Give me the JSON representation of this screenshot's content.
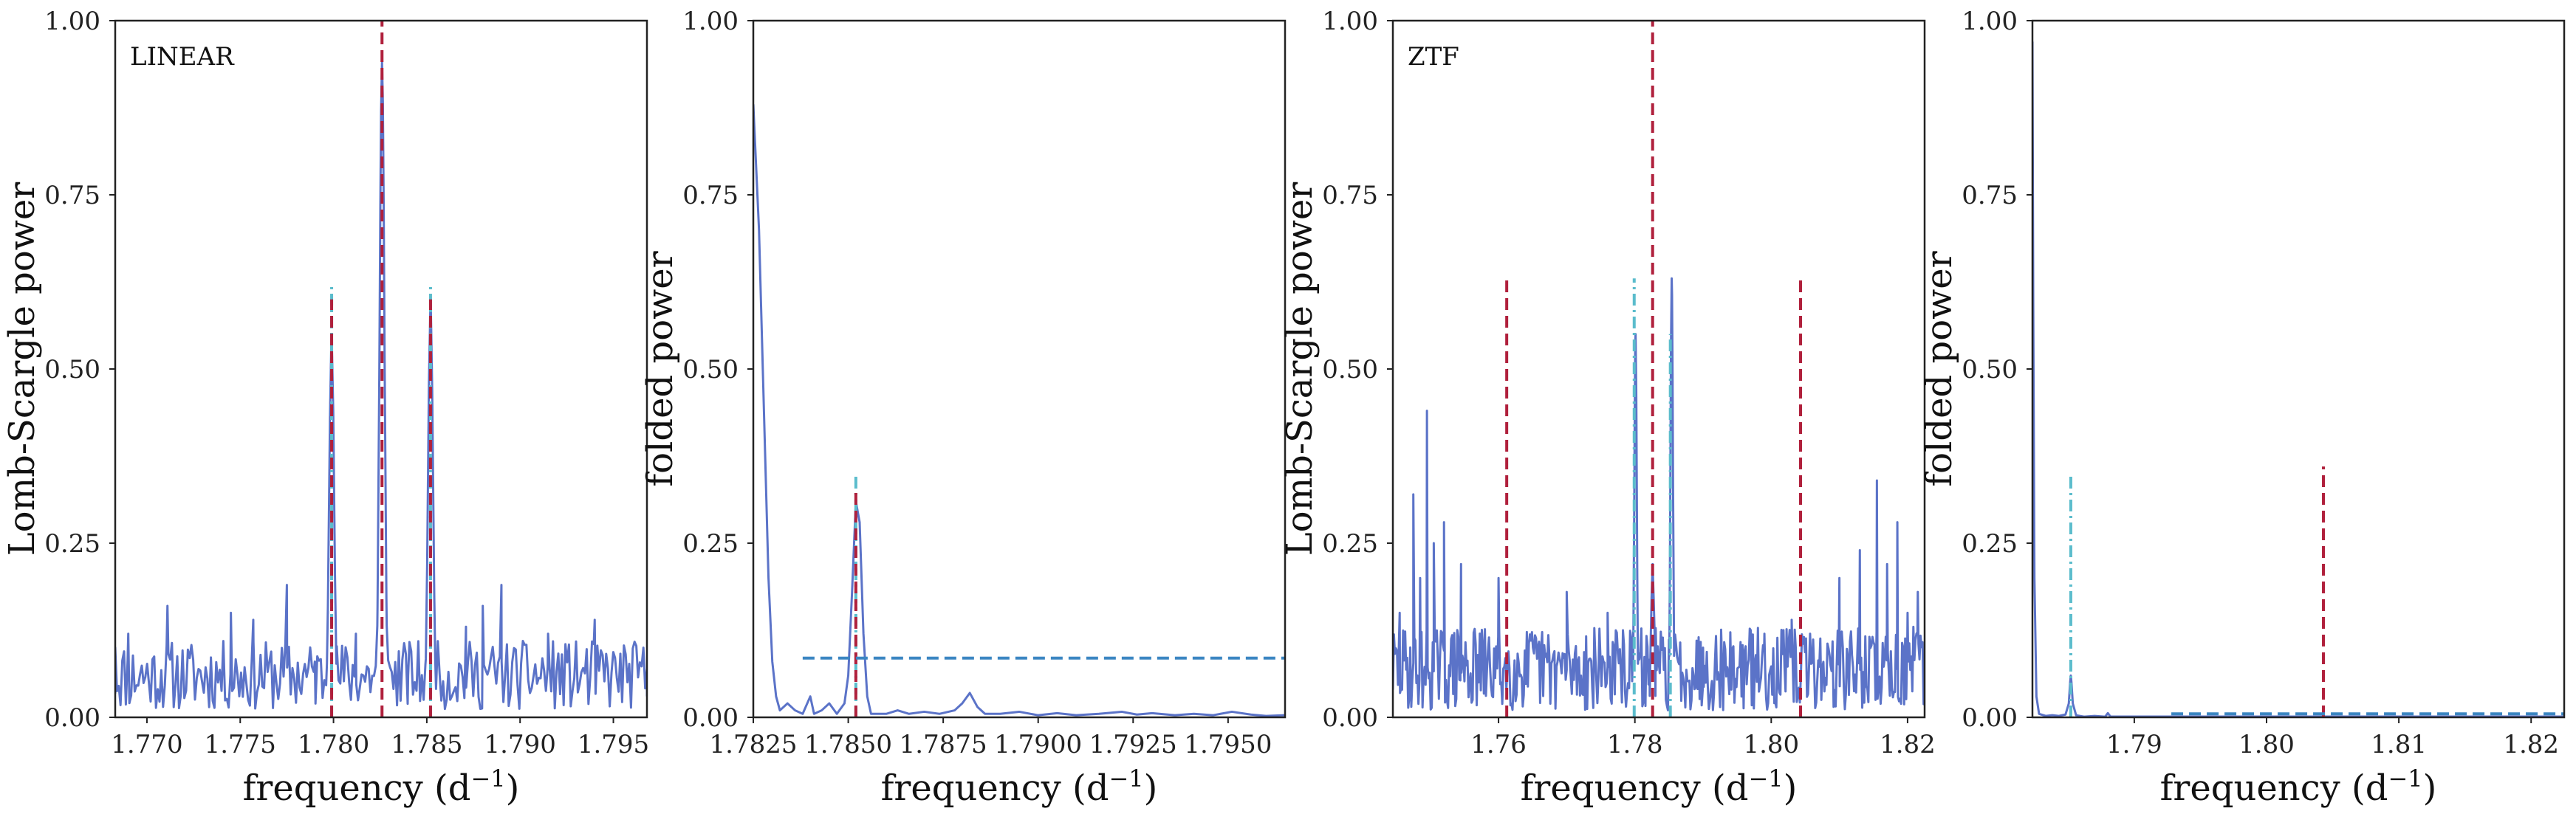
{
  "chart_data": [
    {
      "type": "line",
      "annotation": "LINEAR",
      "xlabel": "frequency (d",
      "xlabel_sup": "−1",
      "xlabel_tail": ")",
      "ylabel": "Lomb-Scargle power",
      "xlim": [
        1.7683,
        1.7968
      ],
      "ylim": [
        0,
        1
      ],
      "xticks": [
        1.77,
        1.775,
        1.78,
        1.785,
        1.79,
        1.795
      ],
      "xtick_labels": [
        "1.770",
        "1.775",
        "1.780",
        "1.785",
        "1.790",
        "1.795"
      ],
      "yticks": [
        0,
        0.25,
        0.5,
        0.75,
        1.0
      ],
      "ytick_labels": [
        "0.00",
        "0.25",
        "0.50",
        "0.75",
        "1.00"
      ],
      "grid": false,
      "series": [
        {
          "style": "solid",
          "color": "#5b73c8",
          "kind": "noisy",
          "baseline": 0.06,
          "noise": 0.05,
          "n": 300,
          "seed": 11,
          "extra_points": [
            [
              1.7683,
              0.1
            ],
            [
              1.769,
              0.12
            ],
            [
              1.7711,
              0.16
            ],
            [
              1.7745,
              0.15
            ],
            [
              1.7757,
              0.14
            ],
            [
              1.7775,
              0.19
            ],
            [
              1.779,
              0.08
            ],
            [
              1.7812,
              0.12
            ],
            [
              1.784,
              0.06
            ],
            [
              1.7871,
              0.13
            ],
            [
              1.788,
              0.16
            ],
            [
              1.789,
              0.19
            ],
            [
              1.7915,
              0.12
            ],
            [
              1.794,
              0.14
            ],
            [
              1.7968,
              0.03
            ]
          ],
          "peaks": [
            {
              "x": 1.7799,
              "y": 0.55,
              "w": 0.00018
            },
            {
              "x": 1.7826,
              "y": 0.94,
              "w": 0.00018
            },
            {
              "x": 1.7852,
              "y": 0.6,
              "w": 0.00018
            }
          ]
        }
      ],
      "vlines": [
        {
          "x": 1.7826,
          "y0": 0,
          "y1": 1.0,
          "style": "dashed",
          "color": "#b0203c"
        },
        {
          "x": 1.7799,
          "y0": 0,
          "y1": 0.62,
          "style": "dashdot",
          "color": "#5bbccc"
        },
        {
          "x": 1.7852,
          "y0": 0,
          "y1": 0.62,
          "style": "dashdot",
          "color": "#5bbccc"
        },
        {
          "x": 1.7799,
          "y0": 0,
          "y1": 0.6,
          "style": "dashed",
          "color": "#b0203c"
        },
        {
          "x": 1.7852,
          "y0": 0,
          "y1": 0.6,
          "style": "dashed",
          "color": "#b0203c"
        }
      ],
      "hlines": []
    },
    {
      "type": "line",
      "annotation": "",
      "xlabel": "frequency (d",
      "xlabel_sup": "−1",
      "xlabel_tail": ")",
      "ylabel": "folded power",
      "xlim": [
        1.7825,
        1.7965
      ],
      "ylim": [
        0,
        1
      ],
      "xticks": [
        1.7825,
        1.785,
        1.7875,
        1.79,
        1.7925,
        1.795
      ],
      "xtick_labels": [
        "1.7825",
        "1.7850",
        "1.7875",
        "1.7900",
        "1.7925",
        "1.7950"
      ],
      "yticks": [
        0,
        0.25,
        0.5,
        0.75,
        1.0
      ],
      "ytick_labels": [
        "0.00",
        "0.25",
        "0.50",
        "0.75",
        "1.00"
      ],
      "grid": false,
      "series": [
        {
          "style": "solid",
          "color": "#5b73c8",
          "kind": "points",
          "points": [
            [
              1.7825,
              0.88
            ],
            [
              1.78265,
              0.7
            ],
            [
              1.7828,
              0.4
            ],
            [
              1.7829,
              0.2
            ],
            [
              1.783,
              0.08
            ],
            [
              1.7831,
              0.03
            ],
            [
              1.7832,
              0.01
            ],
            [
              1.7834,
              0.02
            ],
            [
              1.7836,
              0.01
            ],
            [
              1.7838,
              0.005
            ],
            [
              1.784,
              0.03
            ],
            [
              1.7841,
              0.005
            ],
            [
              1.7843,
              0.01
            ],
            [
              1.7845,
              0.02
            ],
            [
              1.7847,
              0.005
            ],
            [
              1.7849,
              0.02
            ],
            [
              1.785,
              0.06
            ],
            [
              1.7851,
              0.18
            ],
            [
              1.7852,
              0.31
            ],
            [
              1.7853,
              0.28
            ],
            [
              1.7854,
              0.12
            ],
            [
              1.7855,
              0.03
            ],
            [
              1.7856,
              0.005
            ],
            [
              1.786,
              0.005
            ],
            [
              1.7863,
              0.01
            ],
            [
              1.7866,
              0.005
            ],
            [
              1.787,
              0.008
            ],
            [
              1.7874,
              0.005
            ],
            [
              1.7878,
              0.01
            ],
            [
              1.788,
              0.02
            ],
            [
              1.7882,
              0.035
            ],
            [
              1.7884,
              0.015
            ],
            [
              1.7886,
              0.005
            ],
            [
              1.789,
              0.005
            ],
            [
              1.7895,
              0.008
            ],
            [
              1.79,
              0.003
            ],
            [
              1.7905,
              0.006
            ],
            [
              1.791,
              0.003
            ],
            [
              1.7916,
              0.005
            ],
            [
              1.7922,
              0.008
            ],
            [
              1.7926,
              0.004
            ],
            [
              1.793,
              0.006
            ],
            [
              1.7936,
              0.003
            ],
            [
              1.7941,
              0.005
            ],
            [
              1.7946,
              0.003
            ],
            [
              1.7951,
              0.008
            ],
            [
              1.7956,
              0.004
            ],
            [
              1.796,
              0.002
            ],
            [
              1.7965,
              0.003
            ]
          ]
        }
      ],
      "vlines": [
        {
          "x": 1.7852,
          "y0": 0,
          "y1": 0.35,
          "style": "dashdot",
          "color": "#5bbccc"
        },
        {
          "x": 1.7852,
          "y0": 0,
          "y1": 0.33,
          "style": "dashed",
          "color": "#b0203c"
        }
      ],
      "hlines": [
        {
          "y": 0.085,
          "x0": 1.7838,
          "x1": 1.7965,
          "style": "dashed",
          "color": "#3b86c2"
        }
      ]
    },
    {
      "type": "line",
      "annotation": "ZTF",
      "xlabel": "frequency (d",
      "xlabel_sup": "−1",
      "xlabel_tail": ")",
      "ylabel": "Lomb-Scargle power",
      "xlim": [
        1.7445,
        1.8225
      ],
      "ylim": [
        0,
        1
      ],
      "xticks": [
        1.76,
        1.78,
        1.8,
        1.82
      ],
      "xtick_labels": [
        "1.76",
        "1.78",
        "1.80",
        "1.82"
      ],
      "yticks": [
        0,
        0.25,
        0.5,
        0.75,
        1.0
      ],
      "ytick_labels": [
        "0.00",
        "0.25",
        "0.50",
        "0.75",
        "1.00"
      ],
      "grid": false,
      "series": [
        {
          "style": "solid",
          "color": "#5b73c8",
          "kind": "noisy",
          "baseline": 0.07,
          "noise": 0.06,
          "n": 520,
          "seed": 29,
          "extra_points": [
            [
              1.7455,
              0.15
            ],
            [
              1.7475,
              0.32
            ],
            [
              1.7485,
              0.2
            ],
            [
              1.7495,
              0.44
            ],
            [
              1.7505,
              0.25
            ],
            [
              1.752,
              0.28
            ],
            [
              1.7545,
              0.22
            ],
            [
              1.76,
              0.2
            ],
            [
              1.77,
              0.18
            ],
            [
              1.776,
              0.15
            ],
            [
              1.79,
              0.1
            ],
            [
              1.799,
              0.12
            ],
            [
              1.803,
              0.14
            ],
            [
              1.81,
              0.2
            ],
            [
              1.813,
              0.24
            ],
            [
              1.8155,
              0.34
            ],
            [
              1.817,
              0.22
            ],
            [
              1.8185,
              0.28
            ],
            [
              1.82,
              0.15
            ],
            [
              1.8215,
              0.18
            ]
          ],
          "peaks": [
            {
              "x": 1.7801,
              "y": 0.55,
              "w": 0.00025
            },
            {
              "x": 1.7854,
              "y": 0.63,
              "w": 0.00025
            },
            {
              "x": 1.7826,
              "y": 0.22,
              "w": 0.0003
            }
          ]
        }
      ],
      "vlines": [
        {
          "x": 1.7826,
          "y0": 0,
          "y1": 1.0,
          "style": "dashed",
          "color": "#b0203c"
        },
        {
          "x": 1.7612,
          "y0": 0,
          "y1": 0.63,
          "style": "dashed",
          "color": "#b0203c"
        },
        {
          "x": 1.8043,
          "y0": 0,
          "y1": 0.63,
          "style": "dashed",
          "color": "#b0203c"
        },
        {
          "x": 1.7799,
          "y0": 0,
          "y1": 0.63,
          "style": "dashdot",
          "color": "#5bbccc"
        },
        {
          "x": 1.7852,
          "y0": 0,
          "y1": 0.55,
          "style": "dashdot",
          "color": "#5bbccc"
        }
      ],
      "hlines": []
    },
    {
      "type": "line",
      "annotation": "",
      "xlabel": "frequency (d",
      "xlabel_sup": "−1",
      "xlabel_tail": ")",
      "ylabel": "folded power",
      "xlim": [
        1.7823,
        1.8225
      ],
      "ylim": [
        0,
        1
      ],
      "xticks": [
        1.79,
        1.8,
        1.81,
        1.82
      ],
      "xtick_labels": [
        "1.79",
        "1.80",
        "1.81",
        "1.82"
      ],
      "yticks": [
        0,
        0.25,
        0.5,
        0.75,
        1.0
      ],
      "ytick_labels": [
        "0.00",
        "0.25",
        "0.50",
        "0.75",
        "1.00"
      ],
      "grid": false,
      "series": [
        {
          "style": "solid",
          "color": "#5b73c8",
          "kind": "points",
          "points": [
            [
              1.7823,
              0.97
            ],
            [
              1.78236,
              0.6
            ],
            [
              1.78245,
              0.2
            ],
            [
              1.7826,
              0.03
            ],
            [
              1.7828,
              0.005
            ],
            [
              1.7833,
              0.002
            ],
            [
              1.7838,
              0.003
            ],
            [
              1.7843,
              0.002
            ],
            [
              1.7848,
              0.004
            ],
            [
              1.78505,
              0.02
            ],
            [
              1.78515,
              0.05
            ],
            [
              1.7852,
              0.06
            ],
            [
              1.78525,
              0.05
            ],
            [
              1.78535,
              0.02
            ],
            [
              1.7856,
              0.003
            ],
            [
              1.7862,
              0.001
            ],
            [
              1.787,
              0.002
            ],
            [
              1.7878,
              0.001
            ],
            [
              1.788,
              0.006
            ],
            [
              1.7882,
              0.001
            ],
            [
              1.7895,
              0.001
            ],
            [
              1.791,
              0.001
            ],
            [
              1.793,
              0.001
            ],
            [
              1.796,
              0.001
            ],
            [
              1.8,
              0.001
            ],
            [
              1.805,
              0.001
            ],
            [
              1.81,
              0.001
            ],
            [
              1.815,
              0.001
            ],
            [
              1.8225,
              0.001
            ]
          ]
        }
      ],
      "vlines": [
        {
          "x": 1.7852,
          "y0": 0,
          "y1": 0.35,
          "style": "dashdot",
          "color": "#5bbccc"
        },
        {
          "x": 1.8043,
          "y0": 0,
          "y1": 0.36,
          "style": "dashed",
          "color": "#b0203c"
        }
      ],
      "hlines": [
        {
          "y": 0.005,
          "x0": 1.7928,
          "x1": 1.8225,
          "style": "dashed",
          "color": "#3b86c2"
        }
      ]
    }
  ]
}
